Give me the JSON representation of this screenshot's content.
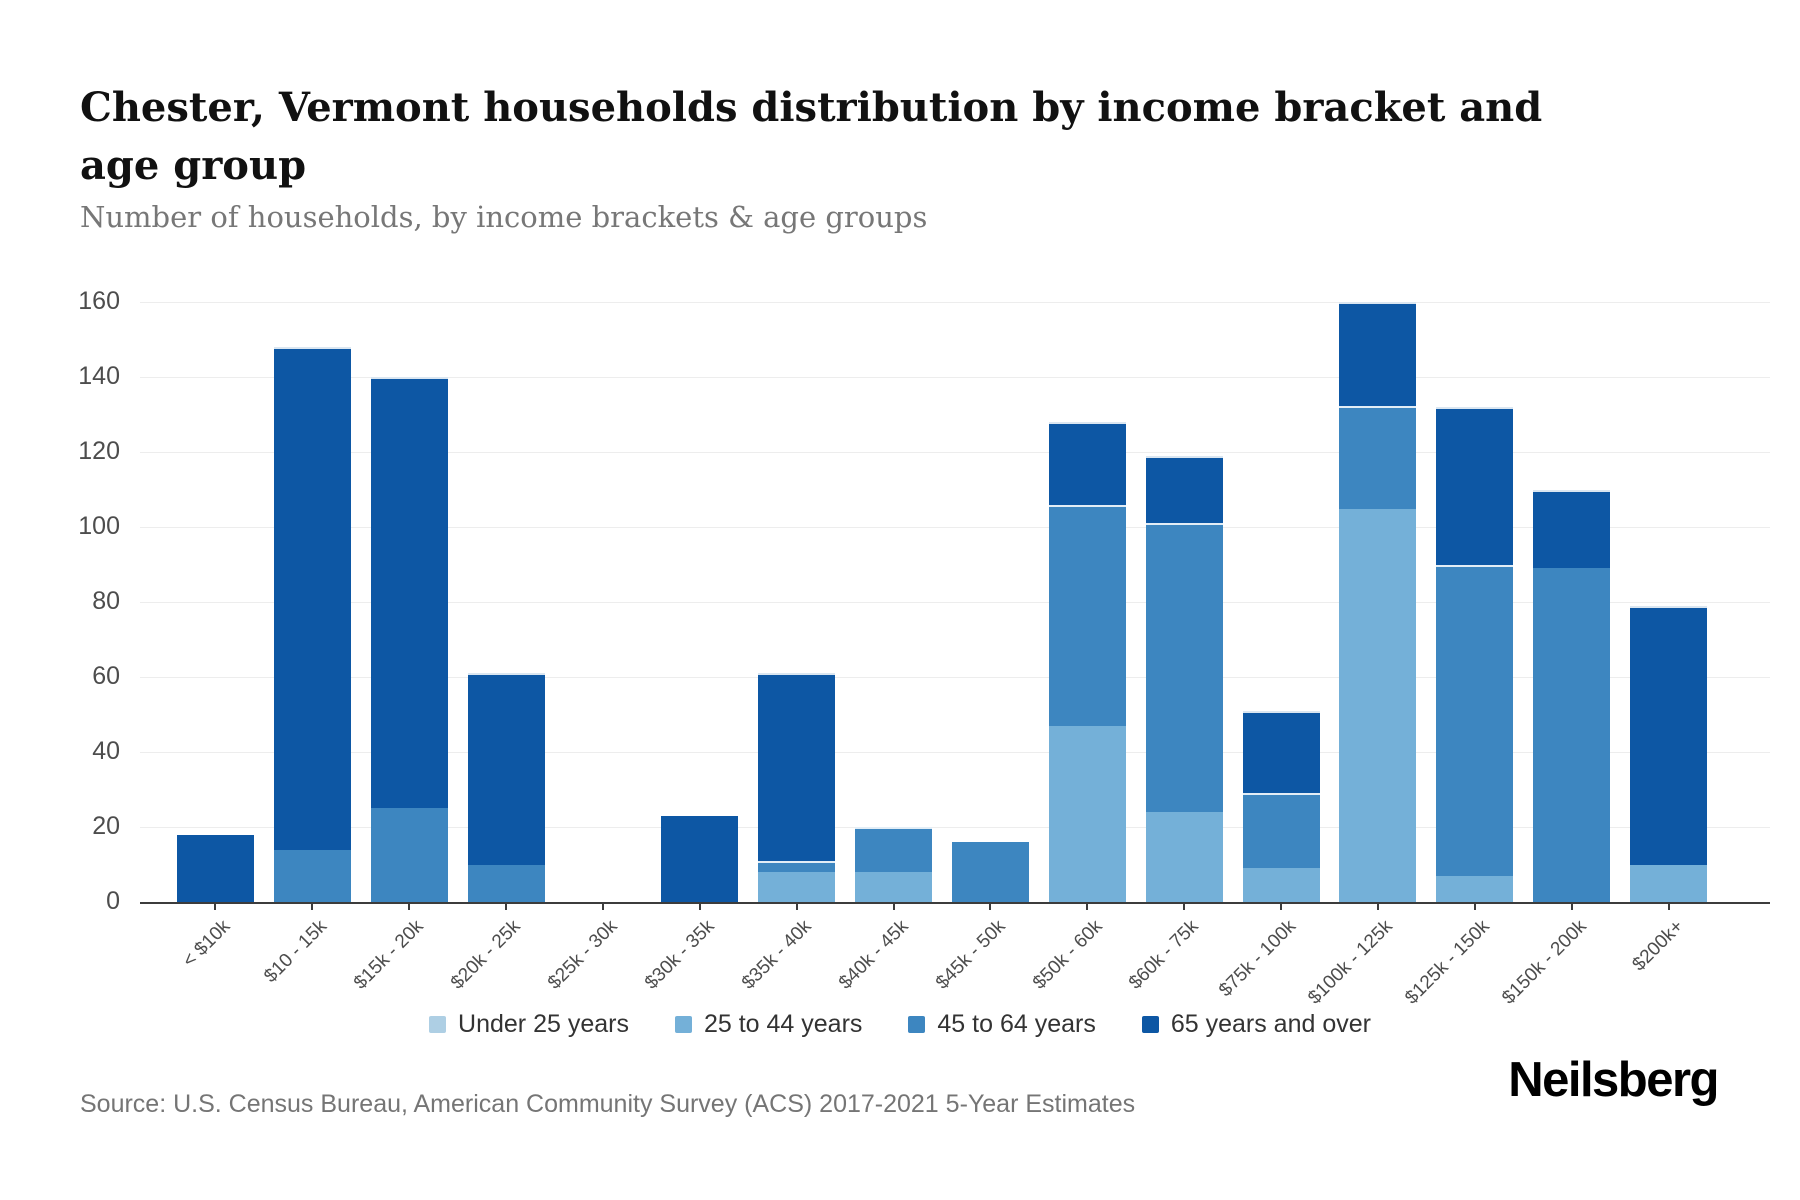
{
  "header": {
    "title": "Chester, Vermont households distribution by income bracket and age group",
    "subtitle": "Number of households, by income brackets & age groups"
  },
  "chart_data": {
    "type": "bar",
    "stacked": true,
    "title": "Chester, Vermont households distribution by income bracket and age group",
    "subtitle": "Number of households, by income brackets & age groups",
    "xlabel": "",
    "ylabel": "",
    "ylim": [
      0,
      160
    ],
    "ytick_step": 20,
    "grid": true,
    "legend_position": "bottom",
    "categories": [
      "< $10k",
      "$10 - 15k",
      "$15k - 20k",
      "$20k - 25k",
      "$25k - 30k",
      "$30k - 35k",
      "$35k - 40k",
      "$40k - 45k",
      "$45k - 50k",
      "$50k - 60k",
      "$60k - 75k",
      "$75k - 100k",
      "$100k - 125k",
      "$125k - 150k",
      "$150k - 200k",
      "$200k+"
    ],
    "series": [
      {
        "name": "Under 25 years",
        "color": "#aecfe4",
        "values": [
          0,
          0,
          0,
          0,
          0,
          0,
          0,
          0,
          0,
          0,
          0,
          0,
          0,
          0,
          0,
          0
        ]
      },
      {
        "name": "25 to 44 years",
        "color": "#74b0d8",
        "values": [
          0,
          0,
          0,
          0,
          0,
          0,
          8,
          8,
          0,
          47,
          24,
          9,
          106,
          7,
          0,
          10
        ]
      },
      {
        "name": "45 to 64 years",
        "color": "#3d86c0",
        "values": [
          0,
          14,
          25,
          10,
          0,
          0,
          3,
          12,
          16,
          59,
          77,
          20,
          28,
          83,
          89,
          0
        ]
      },
      {
        "name": "65 years and over",
        "color": "#0d57a4",
        "values": [
          18,
          134,
          115,
          51,
          0,
          23,
          50,
          0,
          0,
          22,
          18,
          22,
          28,
          42,
          21,
          69
        ]
      }
    ],
    "totals": [
      18,
      148,
      140,
      61,
      0,
      23,
      61,
      20,
      16,
      128,
      119,
      51,
      162,
      132,
      110,
      79
    ]
  },
  "legend": {
    "items": [
      "Under 25 years",
      "25 to 44 years",
      "45 to 64 years",
      "65 years and over"
    ]
  },
  "footer": {
    "source": "Source: U.S. Census Bureau, American Community Survey (ACS) 2017-2021 5-Year Estimates",
    "brand": "Neilsberg"
  }
}
